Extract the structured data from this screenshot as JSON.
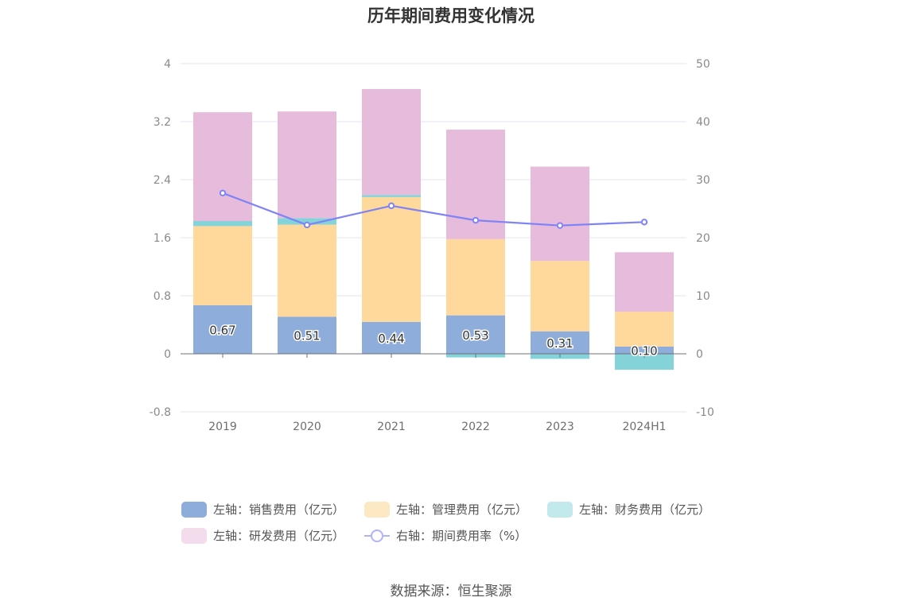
{
  "chart_data": {
    "type": "bar",
    "title": "历年期间费用变化情况",
    "categories": [
      "2019",
      "2020",
      "2021",
      "2022",
      "2023",
      "2024H1"
    ],
    "left_axis": {
      "ylim": [
        -0.8,
        4
      ],
      "ticks": [
        "4",
        "3.2",
        "2.4",
        "1.6",
        "0.8",
        "0",
        "-0.8"
      ]
    },
    "right_axis": {
      "ylim": [
        -10,
        50
      ],
      "ticks": [
        "50",
        "40",
        "30",
        "20",
        "10",
        "0",
        "-10"
      ]
    },
    "series": [
      {
        "name": "左轴：销售费用（亿元）",
        "axis": "left",
        "stack": true,
        "color": "#8faddb",
        "values": [
          0.67,
          0.51,
          0.44,
          0.53,
          0.31,
          0.1
        ],
        "labels": [
          "0.67",
          "0.51",
          "0.44",
          "0.53",
          "0.31",
          "0.10"
        ]
      },
      {
        "name": "左轴：管理费用（亿元）",
        "axis": "left",
        "stack": true,
        "color": "#fed99b",
        "values": [
          1.09,
          1.27,
          1.72,
          1.05,
          0.97,
          0.48
        ]
      },
      {
        "name": "左轴：财务费用（亿元）",
        "axis": "left",
        "stack": true,
        "color": "#84d3d8",
        "values": [
          0.07,
          0.09,
          0.03,
          -0.05,
          -0.07,
          -0.22
        ]
      },
      {
        "name": "左轴：研发费用（亿元）",
        "axis": "left",
        "stack": true,
        "color": "#e7bbdc",
        "values": [
          1.5,
          1.47,
          1.46,
          1.51,
          1.3,
          0.82
        ]
      },
      {
        "name": "右轴：期间费用率（%）",
        "axis": "right",
        "type": "line",
        "color": "#7e83f5",
        "values": [
          27.7,
          22.2,
          25.5,
          23.0,
          22.1,
          22.7
        ]
      }
    ],
    "grid": true,
    "legend_position": "bottom"
  },
  "source": "数据来源：恒生聚源"
}
